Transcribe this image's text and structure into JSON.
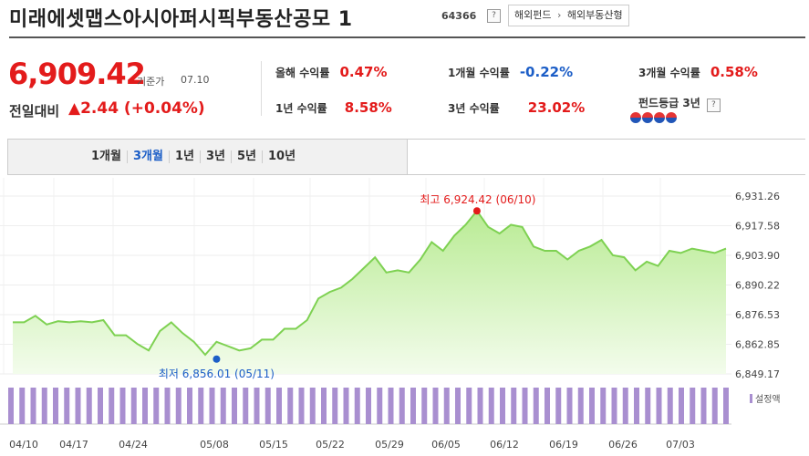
{
  "header": {
    "title": "미래에셋맵스아시아퍼시픽부동산공모 1",
    "code": "64366",
    "help_icon": "question-icon",
    "breadcrumb": [
      "해외펀드",
      "해외부동산형"
    ]
  },
  "price": {
    "value": "6,909.42",
    "label": "기준가",
    "date": "07.10",
    "change_label": "전일대비",
    "change_value": "▲2.44 (+0.04%)"
  },
  "stats": [
    {
      "label": "올해 수익률",
      "value": "0.47%",
      "color": "#e31b1b"
    },
    {
      "label": "1개월 수익률",
      "value": "-0.22%",
      "color": "#1c5ec7"
    },
    {
      "label": "3개월 수익률",
      "value": "0.58%",
      "color": "#e31b1b"
    },
    {
      "label": "1년 수익률",
      "value": "8.58%",
      "color": "#e31b1b"
    },
    {
      "label": "3년 수익률",
      "value": "23.02%",
      "color": "#e31b1b"
    },
    {
      "label": "펀드등급 3년",
      "value": "",
      "color": "#333"
    }
  ],
  "grade": {
    "icon": "rating-dots-icon",
    "count": 4
  },
  "range_tabs": [
    "1개월",
    "3개월",
    "1년",
    "3년",
    "5년",
    "10년"
  ],
  "active_range": "3개월",
  "chart_data": {
    "type": "area",
    "x_ticks": [
      "04/10",
      "04/17",
      "04/24",
      "05/08",
      "05/15",
      "05/22",
      "05/29",
      "06/05",
      "06/12",
      "06/19",
      "06/26",
      "07/03"
    ],
    "y_ticks": [
      "6,931.26",
      "6,917.58",
      "6,903.90",
      "6,890.22",
      "6,876.53",
      "6,862.85",
      "6,849.17"
    ],
    "ylim": [
      6849.17,
      6931.26
    ],
    "values": [
      6873,
      6873,
      6876,
      6872,
      6873.5,
      6873,
      6873.5,
      6873,
      6874,
      6867,
      6867,
      6863,
      6860,
      6869,
      6873,
      6868,
      6864,
      6858,
      6864,
      6862,
      6860,
      6861,
      6865,
      6865,
      6870,
      6870,
      6874,
      6884,
      6887,
      6889,
      6893,
      6898,
      6903,
      6896,
      6897,
      6896,
      6902,
      6910,
      6906,
      6913,
      6918,
      6924.42,
      6917,
      6914,
      6918,
      6917,
      6908,
      6906,
      6906,
      6902,
      6906,
      6908,
      6911,
      6904,
      6903,
      6897,
      6901,
      6899,
      6906,
      6905,
      6907,
      6906,
      6905,
      6907
    ],
    "colors": {
      "line": "#7ed152",
      "fill_top": "#b9eb94",
      "fill_bottom": "#f3fcec",
      "max": "#e31b1b",
      "min": "#1c5ec7",
      "volume": "#a98fd0"
    },
    "max_label": "최고 6,924.42 (06/10)",
    "min_label": "최저 6,856.01 (05/11)",
    "max_index": 41,
    "min_index": 18,
    "volume_legend": "설정액",
    "volume_bar_count": 65
  }
}
